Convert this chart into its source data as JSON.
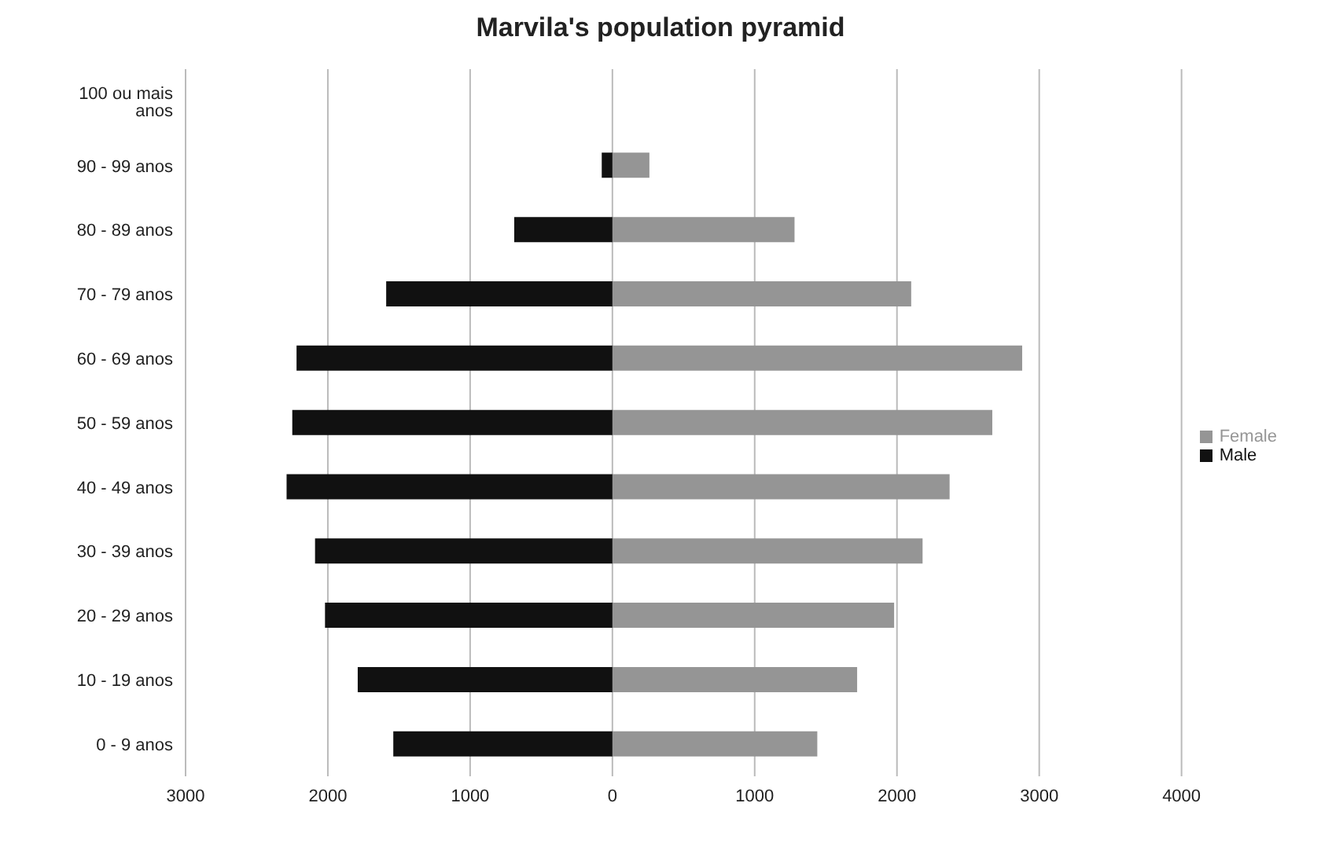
{
  "chart_data": {
    "type": "bar",
    "orientation": "horizontal",
    "stacked": true,
    "title": "Marvila's population pyramid",
    "categories": [
      "100 ou mais anos",
      "90 - 99 anos",
      "80 - 89 anos",
      "70 - 79 anos",
      "60 - 69 anos",
      "50 - 59 anos",
      "40 - 49 anos",
      "30 - 39 anos",
      "20 - 29 anos",
      "10 - 19 anos",
      "0 - 9 anos"
    ],
    "series": [
      {
        "name": "Female",
        "color": "#959595",
        "values": [
          0,
          260,
          1280,
          2100,
          2880,
          2670,
          2370,
          2180,
          1980,
          1720,
          1440
        ]
      },
      {
        "name": "Male",
        "color": "#111111",
        "values": [
          0,
          -75,
          -690,
          -1590,
          -2220,
          -2250,
          -2290,
          -2090,
          -2020,
          -1790,
          -1540
        ]
      }
    ],
    "xlim": [
      -3000,
      4000
    ],
    "xticks": [
      {
        "value": -3000,
        "label": "3000"
      },
      {
        "value": -2000,
        "label": "2000"
      },
      {
        "value": -1000,
        "label": "1000"
      },
      0,
      1000,
      2000,
      3000,
      4000
    ],
    "grid": "x",
    "legend": "right"
  }
}
